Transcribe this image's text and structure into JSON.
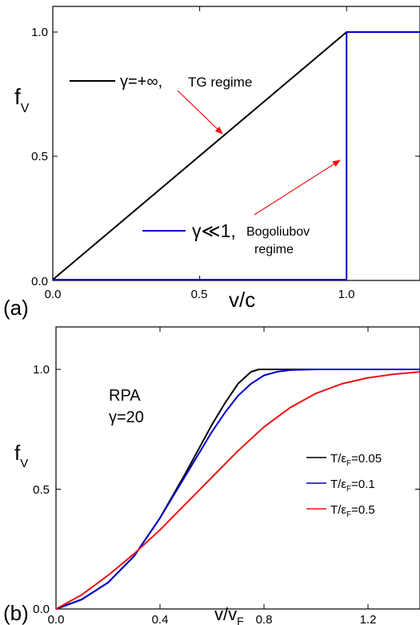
{
  "chart_data": [
    {
      "panel": "(a)",
      "type": "line",
      "ylabel_main": "f",
      "ylabel_sub": "V",
      "xlabel": "v/c",
      "xlim": [
        0,
        1.25
      ],
      "ylim": [
        0,
        1.0
      ],
      "xticks": [
        0.0,
        0.5,
        1.0
      ],
      "xtick_labels": [
        "0.0",
        "0.5",
        "1.0"
      ],
      "yticks": [
        0.0,
        0.5,
        1.0
      ],
      "ytick_labels": [
        "0.0",
        "0.5",
        "1.0"
      ],
      "grid": false,
      "series": [
        {
          "legend_gamma": "γ=+∞,",
          "legend_regime": "TG regime",
          "color": "#000000",
          "x": [
            0,
            1.0,
            1.25
          ],
          "y": [
            0,
            1.0,
            1.0
          ]
        },
        {
          "legend_gamma": "γ≪1,",
          "legend_regime": "Bogoliubov",
          "legend_regime2": "regime",
          "color": "#0000cc",
          "x": [
            0,
            1.0,
            1.0,
            1.25
          ],
          "y": [
            0,
            0,
            1.0,
            1.0
          ]
        }
      ],
      "arrow_color": "#ee1111"
    },
    {
      "panel": "(b)",
      "type": "line",
      "ylabel_main": "f",
      "ylabel_sub": "V",
      "xlabel_main": "v/v",
      "xlabel_sub": "F",
      "xlim": [
        0,
        1.4
      ],
      "ylim": [
        0,
        1.0
      ],
      "xticks": [
        0.0,
        0.4,
        0.8,
        1.2
      ],
      "xtick_labels": [
        "0.0",
        "0.4",
        "0.8",
        "1.2"
      ],
      "yticks": [
        0.0,
        0.5,
        1.0
      ],
      "ytick_labels": [
        "0.0",
        "0.5",
        "1.0"
      ],
      "grid": false,
      "annotation_line1": "RPA",
      "annotation_line2": "γ=20",
      "legend_placement": "right",
      "series": [
        {
          "name_pre": "T/ε",
          "name_sub": "F",
          "name_post": "=0.05",
          "color": "#000000",
          "x": [
            0.0,
            0.1,
            0.2,
            0.3,
            0.4,
            0.5,
            0.6,
            0.65,
            0.7,
            0.75,
            0.78,
            0.8,
            0.85,
            0.9,
            1.0,
            1.2,
            1.4
          ],
          "y": [
            0.0,
            0.04,
            0.11,
            0.22,
            0.38,
            0.57,
            0.77,
            0.86,
            0.94,
            0.99,
            1.0,
            1.0,
            1.0,
            1.0,
            1.0,
            1.0,
            1.0
          ]
        },
        {
          "name_pre": "T/ε",
          "name_sub": "F",
          "name_post": "=0.1",
          "color": "#0000cc",
          "x": [
            0.0,
            0.1,
            0.2,
            0.3,
            0.4,
            0.5,
            0.6,
            0.65,
            0.7,
            0.75,
            0.8,
            0.85,
            0.9,
            1.0,
            1.2,
            1.4
          ],
          "y": [
            0.0,
            0.04,
            0.11,
            0.22,
            0.38,
            0.56,
            0.74,
            0.82,
            0.89,
            0.94,
            0.975,
            0.99,
            0.997,
            1.0,
            1.0,
            1.0
          ]
        },
        {
          "name_pre": "T/ε",
          "name_sub": "F",
          "name_post": "=0.5",
          "color": "#ee1111",
          "x": [
            0.0,
            0.1,
            0.2,
            0.3,
            0.4,
            0.5,
            0.6,
            0.7,
            0.8,
            0.9,
            1.0,
            1.1,
            1.2,
            1.3,
            1.4
          ],
          "y": [
            0.0,
            0.06,
            0.14,
            0.23,
            0.33,
            0.44,
            0.55,
            0.66,
            0.76,
            0.84,
            0.9,
            0.94,
            0.965,
            0.98,
            0.99
          ]
        }
      ]
    }
  ]
}
